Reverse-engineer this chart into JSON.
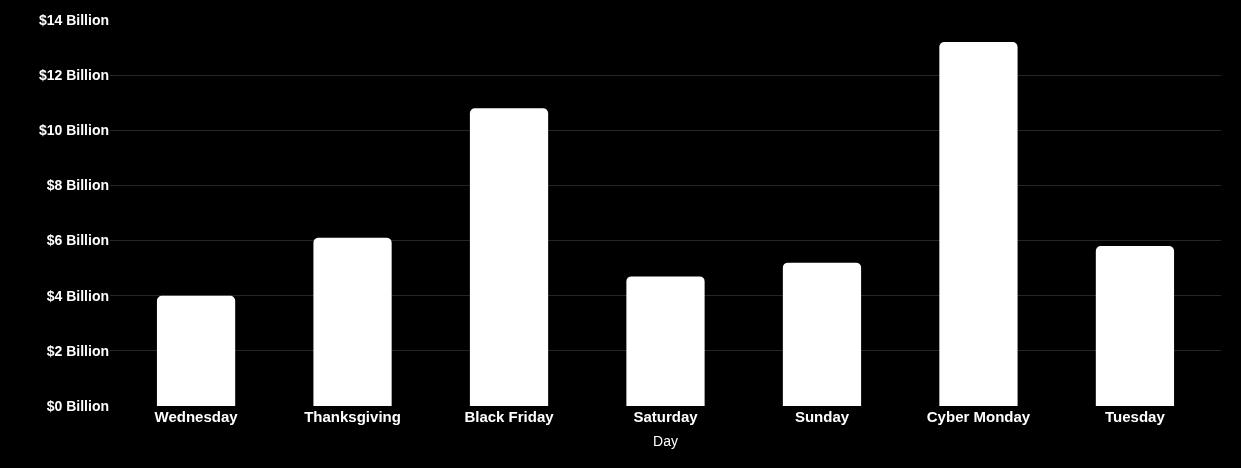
{
  "chart_data": {
    "type": "bar",
    "xlabel": "Day",
    "categories": [
      "Wednesday",
      "Thanksgiving",
      "Black Friday",
      "Saturday",
      "Sunday",
      "Cyber Monday",
      "Tuesday"
    ],
    "values": [
      4.0,
      6.1,
      10.8,
      4.7,
      5.2,
      13.2,
      5.8
    ],
    "color": "#ffffff",
    "ylim": [
      0,
      14
    ],
    "yticks": [
      {
        "value": 0,
        "label": "$0 Billion"
      },
      {
        "value": 2,
        "label": "$2 Billion"
      },
      {
        "value": 4,
        "label": "$4 Billion"
      },
      {
        "value": 6,
        "label": "$6 Billion"
      },
      {
        "value": 8,
        "label": "$8 Billion"
      },
      {
        "value": 10,
        "label": "$10 Billion"
      },
      {
        "value": 12,
        "label": "$12 Billion"
      },
      {
        "value": 14,
        "label": "$14 Billion"
      }
    ],
    "grid": "y"
  }
}
